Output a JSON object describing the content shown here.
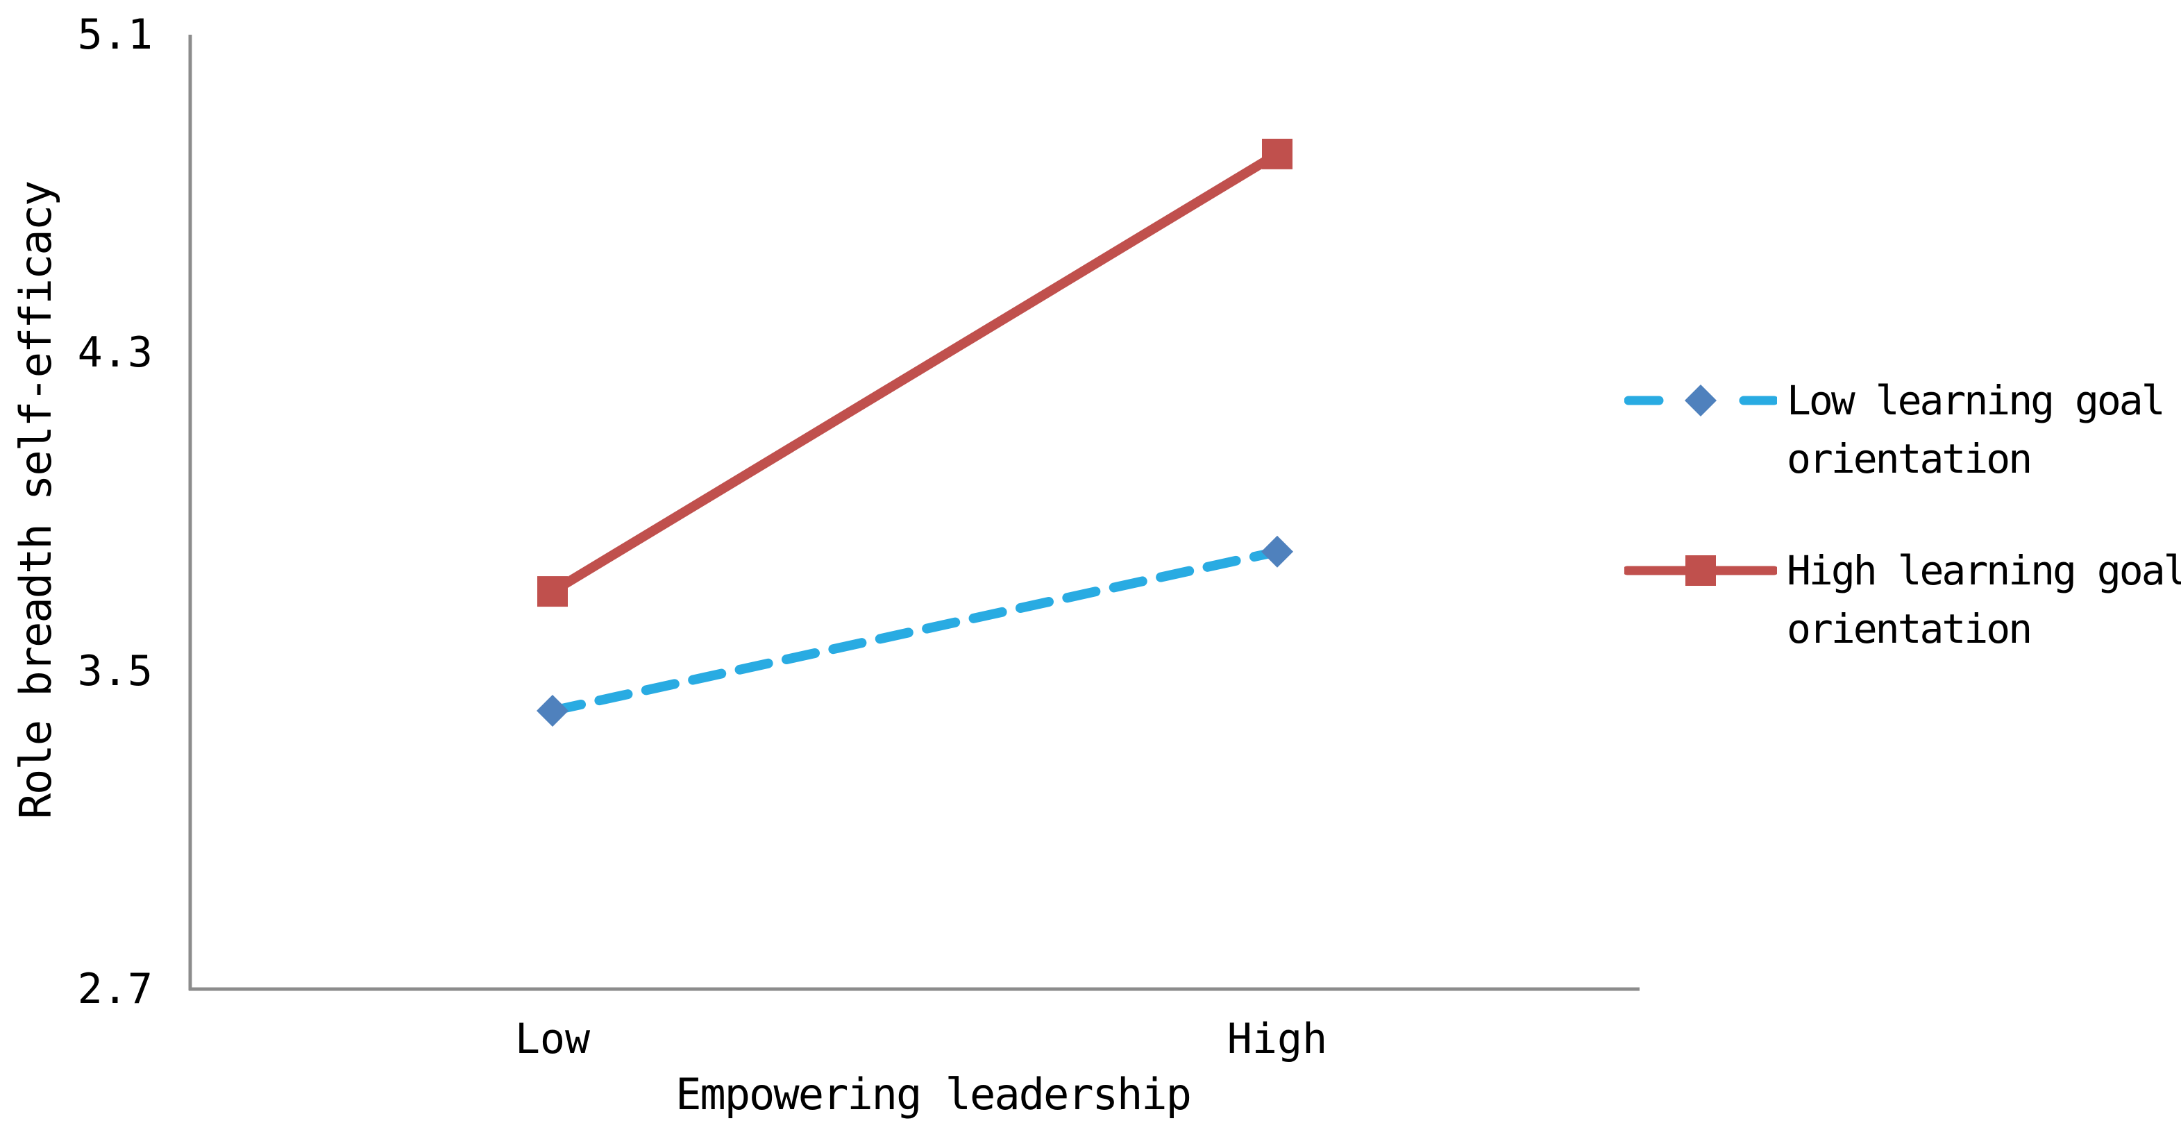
{
  "figure": {
    "background_color": "#ffffff",
    "axis_color": "#8c8c8c",
    "text_color": "#000000"
  },
  "chart_data": {
    "type": "line",
    "categories": [
      "Low",
      "High"
    ],
    "series": [
      {
        "name": "Low learning goal orientation",
        "values": [
          3.4,
          3.8
        ],
        "line_style": "dashed",
        "line_color": "#29abe2",
        "marker": "diamond",
        "marker_color": "#4f81bd"
      },
      {
        "name": "High learning goal orientation",
        "values": [
          3.7,
          4.8
        ],
        "line_style": "solid",
        "line_color": "#c0504d",
        "marker": "square",
        "marker_color": "#c0504d"
      }
    ],
    "xlabel": "Empowering leadership",
    "ylabel": "Role breadth self-efficacy",
    "ylim": [
      2.7,
      5.1
    ],
    "yticks": [
      5.1,
      4.3,
      3.5,
      2.7
    ],
    "ytick_labels": [
      "5.1",
      "4.3",
      "3.5",
      "2.7"
    ],
    "xtick_labels": [
      "Low",
      "High"
    ],
    "grid": false,
    "legend_position": "right"
  },
  "legend": {
    "items": [
      {
        "series": "low-learning-goal-orientation",
        "lines": [
          "Low learning goal",
          "orientation"
        ]
      },
      {
        "series": "high-learning-goal-orientation",
        "lines": [
          "High learning goal",
          "orientation"
        ]
      }
    ]
  }
}
